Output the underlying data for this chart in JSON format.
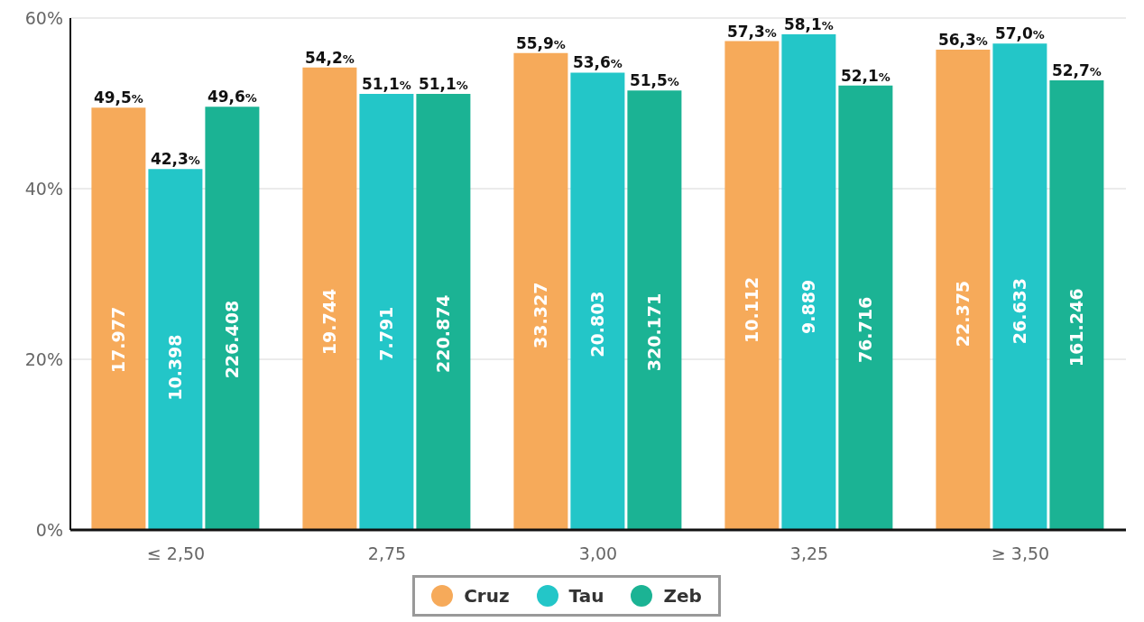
{
  "chart_data": {
    "type": "bar",
    "categories": [
      "≤ 2,50",
      "2,75",
      "3,00",
      "3,25",
      "≥ 3,50"
    ],
    "series": [
      {
        "name": "Cruz",
        "color": "#f6aa5a",
        "values": [
          49.5,
          54.2,
          55.9,
          57.3,
          56.3
        ],
        "value_labels": [
          "49,5%",
          "54,2%",
          "55,9%",
          "57,3%",
          "56,3%"
        ]
      },
      {
        "name": "Tau",
        "color": "#23c6c8",
        "values": [
          42.3,
          51.1,
          53.6,
          58.1,
          57.0
        ],
        "value_labels": [
          "42,3%",
          "51,1%",
          "53,6%",
          "58,1%",
          "57,0%"
        ]
      },
      {
        "name": "Zeb",
        "color": "#1bb394",
        "values": [
          49.6,
          51.1,
          51.5,
          52.1,
          52.7
        ],
        "value_labels": [
          "49,6%",
          "51,1%",
          "51,5%",
          "52,1%",
          "52,7%"
        ]
      }
    ],
    "annotations": [
      "17.977",
      "19.744",
      "33.327",
      "10.112",
      "22.375",
      "10.398",
      "7.791",
      "20.803",
      "9.889",
      "26.633",
      "226.408",
      "220.874",
      "320.171",
      "76.716",
      "161.246"
    ],
    "ylim": [
      0,
      60
    ],
    "yticks": [
      {
        "value": 0,
        "label": "0%"
      },
      {
        "value": 20,
        "label": "20%"
      },
      {
        "value": 40,
        "label": "40%"
      },
      {
        "value": 60,
        "label": "60%"
      }
    ],
    "grid": "y",
    "legend": "bottom"
  }
}
